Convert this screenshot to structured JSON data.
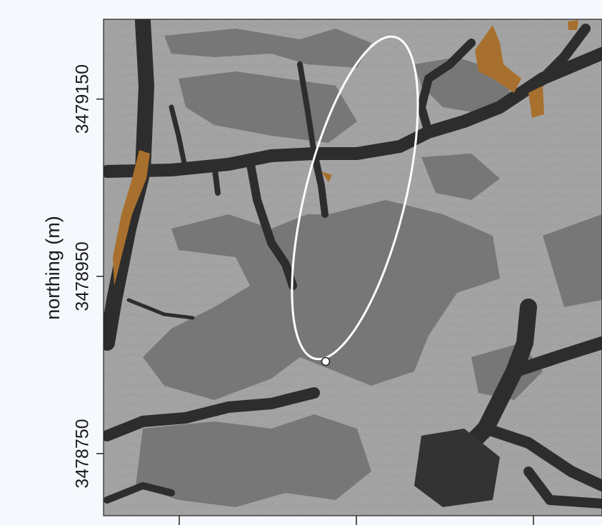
{
  "map": {
    "y_axis_label": "northing (m)",
    "ylim": [
      3478680,
      3479240
    ],
    "yticks": [
      3479150,
      3478950,
      3478750
    ]
  }
}
